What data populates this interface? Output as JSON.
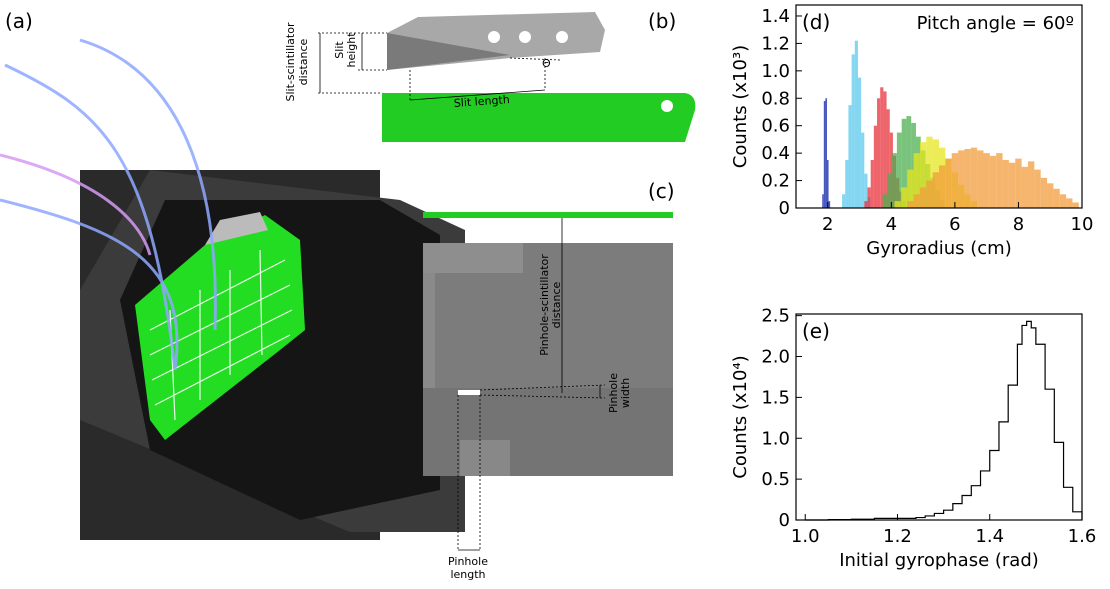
{
  "panel_labels": {
    "a": "(a)",
    "b": "(b)",
    "c": "(c)"
  },
  "diagram_b": {
    "slit_scintillator_distance": [
      "Slit-scintillator",
      "distance"
    ],
    "slit_height": [
      "Slit",
      "height"
    ],
    "angle": "Θ",
    "slit_length": "Slit length"
  },
  "diagram_c": {
    "pinhole_scintillator_distance": [
      "Pinhole-scintillator",
      "distance"
    ],
    "pinhole_width": [
      "Pinhole",
      "width"
    ],
    "pinhole_length": [
      "Pinhole",
      "length"
    ]
  },
  "chart_data": [
    {
      "type": "histogram",
      "label": "(d)",
      "annotation": "Pitch angle = 60º",
      "xlabel": "Gyroradius (cm)",
      "ylabel": "Counts (x10³)",
      "xlim": [
        1,
        10
      ],
      "xticks": [
        2,
        4,
        6,
        8,
        10
      ],
      "ylim": [
        0,
        1.48
      ],
      "yticks": [
        0,
        0.2,
        0.4,
        0.6,
        0.8,
        {
          "value": 1,
          "label": "1.0"
        },
        1.2,
        1.4
      ],
      "series": [
        {
          "color": "#0a1fa8",
          "x": [
            1.85,
            1.9,
            1.95,
            2.0,
            2.05
          ],
          "values": [
            0.1,
            0.78,
            0.8,
            0.35,
            0.05
          ]
        },
        {
          "color": "#5bc8ec",
          "x": [
            2.5,
            2.6,
            2.7,
            2.8,
            2.9,
            3.0,
            3.1,
            3.2,
            3.3
          ],
          "values": [
            0.1,
            0.35,
            0.75,
            1.12,
            1.22,
            0.95,
            0.55,
            0.25,
            0.08
          ]
        },
        {
          "color": "#e8303a",
          "x": [
            3.2,
            3.3,
            3.4,
            3.5,
            3.6,
            3.7,
            3.8,
            3.9,
            4.0,
            4.1,
            4.2,
            4.3,
            4.4
          ],
          "values": [
            0.05,
            0.15,
            0.35,
            0.6,
            0.8,
            0.88,
            0.85,
            0.72,
            0.55,
            0.38,
            0.22,
            0.12,
            0.05
          ]
        },
        {
          "color": "#4caf50",
          "x": [
            3.8,
            3.95,
            4.1,
            4.25,
            4.4,
            4.55,
            4.7,
            4.85,
            5.0,
            5.15,
            5.3,
            5.45,
            5.6
          ],
          "values": [
            0.1,
            0.25,
            0.4,
            0.55,
            0.65,
            0.67,
            0.62,
            0.52,
            0.42,
            0.32,
            0.22,
            0.13,
            0.06
          ]
        },
        {
          "color": "#e6e61e",
          "x": [
            4.2,
            4.4,
            4.6,
            4.8,
            5.0,
            5.2,
            5.4,
            5.6,
            5.8,
            6.0,
            6.2,
            6.4,
            6.6
          ],
          "values": [
            0.05,
            0.15,
            0.28,
            0.4,
            0.48,
            0.52,
            0.5,
            0.44,
            0.36,
            0.26,
            0.17,
            0.1,
            0.05
          ]
        },
        {
          "color": "#f39c3c",
          "x": [
            4.6,
            4.8,
            5.0,
            5.2,
            5.4,
            5.6,
            5.8,
            6.0,
            6.2,
            6.4,
            6.6,
            6.8,
            7.0,
            7.2,
            7.4,
            7.6,
            7.8,
            8.0,
            8.2,
            8.4,
            8.6,
            8.8,
            9.0,
            9.2,
            9.4,
            9.6,
            9.8
          ],
          "values": [
            0.05,
            0.1,
            0.15,
            0.2,
            0.26,
            0.31,
            0.36,
            0.4,
            0.42,
            0.43,
            0.44,
            0.42,
            0.4,
            0.38,
            0.4,
            0.35,
            0.33,
            0.36,
            0.3,
            0.34,
            0.28,
            0.22,
            0.18,
            0.14,
            0.1,
            0.07,
            0.04
          ]
        }
      ]
    },
    {
      "type": "line",
      "step": true,
      "label": "(e)",
      "xlabel": "Initial gyrophase (rad)",
      "ylabel": "Counts (x10⁴)",
      "xlim": [
        0.98,
        1.6
      ],
      "xticks": [
        {
          "value": 1,
          "label": "1.0"
        },
        1.2,
        1.4,
        1.6
      ],
      "ylim": [
        0,
        2.52
      ],
      "yticks": [
        0,
        0.5,
        {
          "value": 1,
          "label": "1.0"
        },
        1.5,
        {
          "value": 2,
          "label": "2.0"
        },
        2.5
      ],
      "series": [
        {
          "color": "#000000",
          "x": [
            1.0,
            1.05,
            1.1,
            1.15,
            1.2,
            1.24,
            1.26,
            1.28,
            1.3,
            1.32,
            1.34,
            1.36,
            1.38,
            1.4,
            1.42,
            1.44,
            1.46,
            1.47,
            1.48,
            1.49,
            1.5,
            1.52,
            1.54,
            1.56,
            1.58,
            1.6
          ],
          "values": [
            0,
            0.005,
            0.01,
            0.02,
            0.02,
            0.03,
            0.05,
            0.08,
            0.12,
            0.2,
            0.3,
            0.42,
            0.6,
            0.85,
            1.2,
            1.65,
            2.15,
            2.38,
            2.43,
            2.35,
            2.15,
            1.6,
            0.95,
            0.4,
            0.1,
            0
          ]
        }
      ]
    }
  ]
}
